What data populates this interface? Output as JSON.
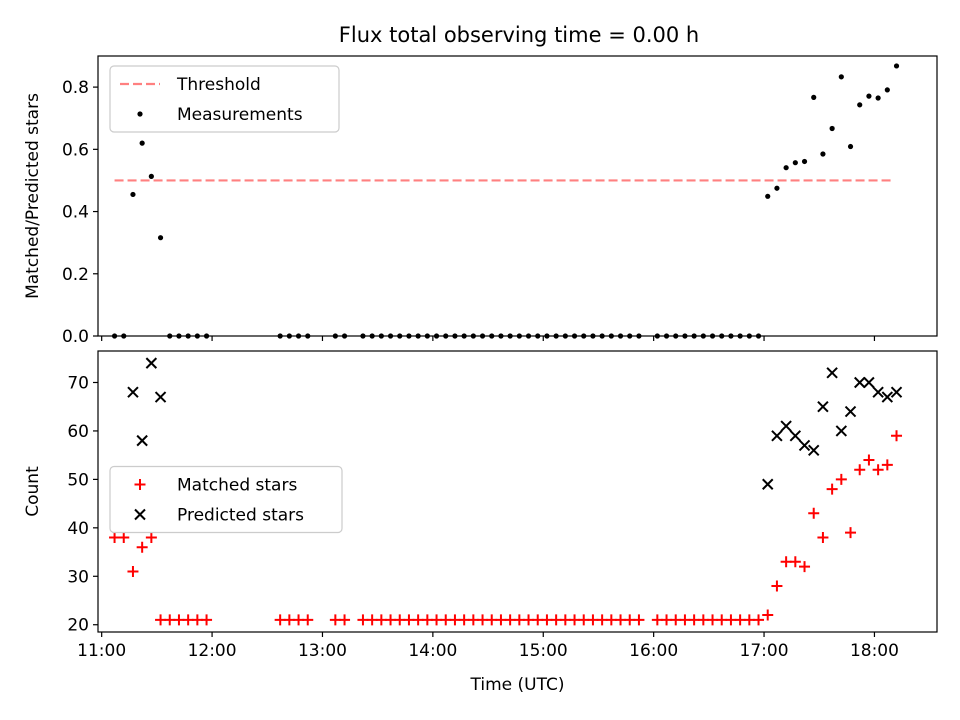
{
  "title": "Flux total observing time = 0.00 h",
  "colors": {
    "threshold": "#ff8080",
    "measurement": "#000000",
    "matched": "#ff0000",
    "predicted": "#000000"
  },
  "chart_data": [
    {
      "type": "scatter",
      "ylabel": "Matched/Predicted stars",
      "xlabel": "",
      "xlim": [
        "10:58",
        "18:34"
      ],
      "ylim": [
        0,
        0.9
      ],
      "yticks": [
        0.0,
        0.2,
        0.4,
        0.6,
        0.8
      ],
      "ytick_labels": [
        "0.0",
        "0.2",
        "0.4",
        "0.6",
        "0.8"
      ],
      "legend": {
        "location": "upper left",
        "entries": [
          {
            "key": "threshold",
            "label": "Threshold",
            "marker": "dashed-line"
          },
          {
            "key": "measurements",
            "label": "Measurements",
            "marker": "dot"
          }
        ]
      },
      "threshold": {
        "value": 0.5,
        "x_start": "11:07",
        "x_end": "18:10"
      },
      "series": [
        {
          "name": "Measurements",
          "x": [
            "11:07",
            "11:12",
            "11:17",
            "11:22",
            "11:27",
            "11:32",
            "11:37",
            "11:42",
            "11:47",
            "11:52",
            "11:57",
            "12:37",
            "12:42",
            "12:47",
            "12:52",
            "13:07",
            "13:12",
            "13:22",
            "13:27",
            "13:32",
            "13:37",
            "13:42",
            "13:47",
            "13:52",
            "13:57",
            "14:02",
            "14:07",
            "14:12",
            "14:17",
            "14:22",
            "14:27",
            "14:32",
            "14:37",
            "14:42",
            "14:47",
            "14:52",
            "14:57",
            "15:02",
            "15:07",
            "15:12",
            "15:17",
            "15:22",
            "15:27",
            "15:32",
            "15:37",
            "15:42",
            "15:47",
            "15:52",
            "16:02",
            "16:07",
            "16:12",
            "16:17",
            "16:22",
            "16:27",
            "16:32",
            "16:37",
            "16:42",
            "16:47",
            "16:52",
            "16:57",
            "17:02",
            "17:07",
            "17:12",
            "17:17",
            "17:22",
            "17:27",
            "17:32",
            "17:37",
            "17:42",
            "17:47",
            "17:52",
            "17:57",
            "18:02",
            "18:07",
            "18:12"
          ],
          "y": [
            0,
            0,
            0.455,
            0.62,
            0.513,
            0.316,
            0,
            0,
            0,
            0,
            0,
            0,
            0,
            0,
            0,
            0,
            0,
            0,
            0,
            0,
            0,
            0,
            0,
            0,
            0,
            0,
            0,
            0,
            0,
            0,
            0,
            0,
            0,
            0,
            0,
            0,
            0,
            0,
            0,
            0,
            0,
            0,
            0,
            0,
            0,
            0,
            0,
            0,
            0,
            0,
            0,
            0,
            0,
            0,
            0,
            0,
            0,
            0,
            0,
            0,
            0.449,
            0.475,
            0.541,
            0.557,
            0.561,
            0.767,
            0.585,
            0.667,
            0.833,
            0.609,
            0.743,
            0.771,
            0.765,
            0.791,
            0.868
          ]
        }
      ]
    },
    {
      "type": "scatter",
      "ylabel": "Count",
      "xlabel": "Time (UTC)",
      "xlim": [
        "10:58",
        "18:34"
      ],
      "ylim": [
        18.5,
        76.5
      ],
      "xticks": [
        "11:00",
        "12:00",
        "13:00",
        "14:00",
        "15:00",
        "16:00",
        "17:00",
        "18:00"
      ],
      "yticks": [
        20,
        30,
        40,
        50,
        60,
        70
      ],
      "ytick_labels": [
        "20",
        "30",
        "40",
        "50",
        "60",
        "70"
      ],
      "legend": {
        "location": "center left",
        "entries": [
          {
            "key": "matched",
            "label": "Matched stars",
            "marker": "plus"
          },
          {
            "key": "predicted",
            "label": "Predicted stars",
            "marker": "x"
          }
        ]
      },
      "series": [
        {
          "name": "Matched stars",
          "x": [
            "11:07",
            "11:12",
            "11:17",
            "11:22",
            "11:27",
            "11:32",
            "11:37",
            "11:42",
            "11:47",
            "11:52",
            "11:57",
            "12:37",
            "12:42",
            "12:47",
            "12:52",
            "13:07",
            "13:12",
            "13:22",
            "13:27",
            "13:32",
            "13:37",
            "13:42",
            "13:47",
            "13:52",
            "13:57",
            "14:02",
            "14:07",
            "14:12",
            "14:17",
            "14:22",
            "14:27",
            "14:32",
            "14:37",
            "14:42",
            "14:47",
            "14:52",
            "14:57",
            "15:02",
            "15:07",
            "15:12",
            "15:17",
            "15:22",
            "15:27",
            "15:32",
            "15:37",
            "15:42",
            "15:47",
            "15:52",
            "16:02",
            "16:07",
            "16:12",
            "16:17",
            "16:22",
            "16:27",
            "16:32",
            "16:37",
            "16:42",
            "16:47",
            "16:52",
            "16:57",
            "17:02",
            "17:07",
            "17:12",
            "17:17",
            "17:22",
            "17:27",
            "17:32",
            "17:37",
            "17:42",
            "17:47",
            "17:52",
            "17:57",
            "18:02",
            "18:07",
            "18:12"
          ],
          "y": [
            38,
            38,
            31,
            36,
            38,
            21,
            21,
            21,
            21,
            21,
            21,
            21,
            21,
            21,
            21,
            21,
            21,
            21,
            21,
            21,
            21,
            21,
            21,
            21,
            21,
            21,
            21,
            21,
            21,
            21,
            21,
            21,
            21,
            21,
            21,
            21,
            21,
            21,
            21,
            21,
            21,
            21,
            21,
            21,
            21,
            21,
            21,
            21,
            21,
            21,
            21,
            21,
            21,
            21,
            21,
            21,
            21,
            21,
            21,
            21,
            22,
            28,
            33,
            33,
            32,
            43,
            38,
            48,
            50,
            39,
            52,
            54,
            52,
            53,
            59
          ]
        },
        {
          "name": "Predicted stars",
          "x": [
            "11:17",
            "11:22",
            "11:27",
            "11:32",
            "17:02",
            "17:07",
            "17:12",
            "17:17",
            "17:22",
            "17:27",
            "17:32",
            "17:37",
            "17:42",
            "17:47",
            "17:52",
            "17:57",
            "18:02",
            "18:07",
            "18:12"
          ],
          "y": [
            68,
            58,
            74,
            67,
            49,
            59,
            61,
            59,
            57,
            56,
            65,
            72,
            60,
            64,
            70,
            70,
            68,
            67,
            68
          ]
        }
      ]
    }
  ]
}
